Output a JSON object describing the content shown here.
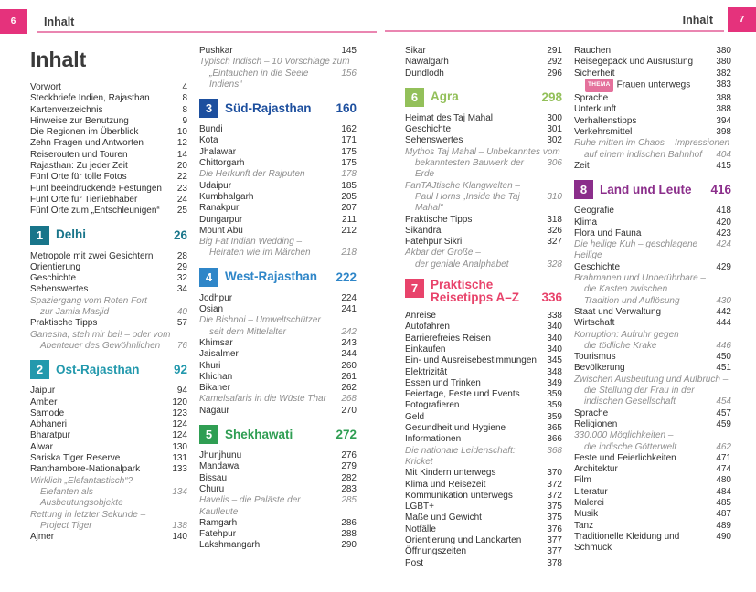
{
  "header": {
    "left": {
      "page_number": "6",
      "title": "Inhalt"
    },
    "right": {
      "page_number": "7",
      "title": "Inhalt"
    },
    "accent_color": "#e5327c",
    "rule_color": "#ea86b1"
  },
  "columns": [
    {
      "id": "page6-column1",
      "items": [
        {
          "t": "title",
          "text": "Inhalt"
        },
        {
          "t": "e",
          "label": "Vorwort",
          "page": "4"
        },
        {
          "t": "e",
          "label": "Steckbriefe Indien, Rajasthan",
          "page": "8"
        },
        {
          "t": "e",
          "label": "Kartenverzeichnis",
          "page": "8"
        },
        {
          "t": "e",
          "label": "Hinweise zur Benutzung",
          "page": "9"
        },
        {
          "t": "e",
          "label": "Die Regionen im Überblick",
          "page": "10"
        },
        {
          "t": "e",
          "label": "Zehn Fragen und Antworten",
          "page": "12"
        },
        {
          "t": "e",
          "label": "Reiserouten und Touren",
          "page": "14"
        },
        {
          "t": "e",
          "label": "Rajasthan: Zu jeder Zeit",
          "page": "20"
        },
        {
          "t": "e",
          "label": "Fünf Orte für tolle Fotos",
          "page": "22"
        },
        {
          "t": "e",
          "label": "Fünf beeindruckende Festungen",
          "page": "23"
        },
        {
          "t": "e",
          "label": "Fünf Orte für Tierliebhaber",
          "page": "24"
        },
        {
          "t": "e",
          "label": "Fünf Orte zum „Entschleunigen“",
          "page": "25"
        },
        {
          "t": "s",
          "num": "1",
          "label": "Delhi",
          "page": "26",
          "color": "#19758a"
        },
        {
          "t": "e",
          "label": "Metropole mit zwei Gesichtern",
          "page": "28"
        },
        {
          "t": "e",
          "label": "Orientierung",
          "page": "29"
        },
        {
          "t": "e",
          "label": "Geschichte",
          "page": "32"
        },
        {
          "t": "e",
          "label": "Sehenswertes",
          "page": "34"
        },
        {
          "t": "f",
          "lines": [
            "Spaziergang vom Roten Fort",
            "zur Jamia Masjid"
          ],
          "page": "40"
        },
        {
          "t": "e",
          "label": "Praktische Tipps",
          "page": "57"
        },
        {
          "t": "f",
          "lines": [
            "Ganesha, steh mir bei! – oder vom",
            "Abenteuer des Gewöhnlichen"
          ],
          "page": "76"
        },
        {
          "t": "s",
          "num": "2",
          "label": "Ost-Rajasthan",
          "page": "92",
          "color": "#2399ad"
        },
        {
          "t": "e",
          "label": "Jaipur",
          "page": "94"
        },
        {
          "t": "e",
          "label": "Amber",
          "page": "120"
        },
        {
          "t": "e",
          "label": "Samode",
          "page": "123"
        },
        {
          "t": "e",
          "label": "Abhaneri",
          "page": "124"
        },
        {
          "t": "e",
          "label": "Bharatpur",
          "page": "124"
        },
        {
          "t": "e",
          "label": "Alwar",
          "page": "130"
        },
        {
          "t": "e",
          "label": "Sariska Tiger Reserve",
          "page": "131"
        },
        {
          "t": "e",
          "label": "Ranthambore-Nationalpark",
          "page": "133"
        },
        {
          "t": "f",
          "lines": [
            "Wirklich „Elefantastisch“? –",
            "Elefanten als Ausbeutungsobjekte"
          ],
          "page": "134"
        },
        {
          "t": "f",
          "lines": [
            "Rettung in letzter Sekunde –",
            "Project Tiger"
          ],
          "page": "138"
        },
        {
          "t": "e",
          "label": "Ajmer",
          "page": "140"
        }
      ]
    },
    {
      "id": "page6-column2",
      "items": [
        {
          "t": "e",
          "label": "Pushkar",
          "page": "145"
        },
        {
          "t": "f",
          "lines": [
            "Typisch Indisch – 10 Vorschläge zum",
            "„Eintauchen in die Seele Indiens“"
          ],
          "page": "156"
        },
        {
          "t": "s",
          "num": "3",
          "label": "Süd-Rajasthan",
          "page": "160",
          "color": "#1d4f9e"
        },
        {
          "t": "e",
          "label": "Bundi",
          "page": "162"
        },
        {
          "t": "e",
          "label": "Kota",
          "page": "171"
        },
        {
          "t": "e",
          "label": "Jhalawar",
          "page": "175"
        },
        {
          "t": "e",
          "label": "Chittorgarh",
          "page": "175"
        },
        {
          "t": "f",
          "lines": [
            "Die Herkunft der Rajputen"
          ],
          "page": "178"
        },
        {
          "t": "e",
          "label": "Udaipur",
          "page": "185"
        },
        {
          "t": "e",
          "label": "Kumbhalgarh",
          "page": "205"
        },
        {
          "t": "e",
          "label": "Ranakpur",
          "page": "207"
        },
        {
          "t": "e",
          "label": "Dungarpur",
          "page": "211"
        },
        {
          "t": "e",
          "label": "Mount Abu",
          "page": "212"
        },
        {
          "t": "f",
          "lines": [
            "Big Fat Indian Wedding –",
            "Heiraten wie im Märchen"
          ],
          "page": "218"
        },
        {
          "t": "s",
          "num": "4",
          "label": "West-Rajasthan",
          "page": "222",
          "color": "#2f86c8"
        },
        {
          "t": "e",
          "label": "Jodhpur",
          "page": "224"
        },
        {
          "t": "e",
          "label": "Osian",
          "page": "241"
        },
        {
          "t": "f",
          "lines": [
            "Die Bishnoi – Umweltschützer",
            "seit dem Mittelalter"
          ],
          "page": "242"
        },
        {
          "t": "e",
          "label": "Khimsar",
          "page": "243"
        },
        {
          "t": "e",
          "label": "Jaisalmer",
          "page": "244"
        },
        {
          "t": "e",
          "label": "Khuri",
          "page": "260"
        },
        {
          "t": "e",
          "label": "Khichan",
          "page": "261"
        },
        {
          "t": "e",
          "label": "Bikaner",
          "page": "262"
        },
        {
          "t": "f",
          "lines": [
            "Kamelsafaris in die Wüste Thar"
          ],
          "page": "268"
        },
        {
          "t": "e",
          "label": "Nagaur",
          "page": "270"
        },
        {
          "t": "s",
          "num": "5",
          "label": "Shekhawati",
          "page": "272",
          "color": "#2f9e53"
        },
        {
          "t": "e",
          "label": "Jhunjhunu",
          "page": "276"
        },
        {
          "t": "e",
          "label": "Mandawa",
          "page": "279"
        },
        {
          "t": "e",
          "label": "Bissau",
          "page": "282"
        },
        {
          "t": "e",
          "label": "Churu",
          "page": "283"
        },
        {
          "t": "f",
          "lines": [
            "Havelis – die Paläste der Kaufleute"
          ],
          "page": "285"
        },
        {
          "t": "e",
          "label": "Ramgarh",
          "page": "286"
        },
        {
          "t": "e",
          "label": "Fatehpur",
          "page": "288"
        },
        {
          "t": "e",
          "label": "Lakshmangarh",
          "page": "290"
        }
      ]
    },
    {
      "id": "page7-column1",
      "items": [
        {
          "t": "e",
          "label": "Sikar",
          "page": "291"
        },
        {
          "t": "e",
          "label": "Nawalgarh",
          "page": "292"
        },
        {
          "t": "e",
          "label": "Dundlodh",
          "page": "296"
        },
        {
          "t": "s",
          "num": "6",
          "label": "Agra",
          "page": "298",
          "color": "#93c05a"
        },
        {
          "t": "e",
          "label": "Heimat des Taj Mahal",
          "page": "300"
        },
        {
          "t": "e",
          "label": "Geschichte",
          "page": "301"
        },
        {
          "t": "e",
          "label": "Sehenswertes",
          "page": "302"
        },
        {
          "t": "f",
          "lines": [
            "Mythos Taj Mahal – Unbekanntes vom",
            "bekanntesten Bauwerk der Erde"
          ],
          "page": "306"
        },
        {
          "t": "f",
          "lines": [
            "FanTAJtische Klangwelten –",
            "Paul Horns „Inside the Taj Mahal“"
          ],
          "page": "310"
        },
        {
          "t": "e",
          "label": "Praktische Tipps",
          "page": "318"
        },
        {
          "t": "e",
          "label": "Sikandra",
          "page": "326"
        },
        {
          "t": "e",
          "label": "Fatehpur Sikri",
          "page": "327"
        },
        {
          "t": "f",
          "lines": [
            "Akbar der Große –",
            "der geniale Analphabet"
          ],
          "page": "328"
        },
        {
          "t": "s",
          "num": "7",
          "label_lines": [
            "Praktische",
            "Reisetipps A–Z"
          ],
          "page": "336",
          "color": "#e8436b"
        },
        {
          "t": "e",
          "label": "Anreise",
          "page": "338"
        },
        {
          "t": "e",
          "label": "Autofahren",
          "page": "340"
        },
        {
          "t": "e",
          "label": "Barrierefreies Reisen",
          "page": "340"
        },
        {
          "t": "e",
          "label": "Einkaufen",
          "page": "340"
        },
        {
          "t": "e",
          "label": "Ein- und Ausreisebestimmungen",
          "page": "345"
        },
        {
          "t": "e",
          "label": "Elektrizität",
          "page": "348"
        },
        {
          "t": "e",
          "label": "Essen und Trinken",
          "page": "349"
        },
        {
          "t": "e",
          "label": "Feiertage, Feste und Events",
          "page": "359"
        },
        {
          "t": "e",
          "label": "Fotografieren",
          "page": "359"
        },
        {
          "t": "e",
          "label": "Geld",
          "page": "359"
        },
        {
          "t": "e",
          "label": "Gesundheit und Hygiene",
          "page": "365"
        },
        {
          "t": "e",
          "label": "Informationen",
          "page": "366"
        },
        {
          "t": "f",
          "lines": [
            "Die nationale Leidenschaft: Kricket"
          ],
          "page": "368"
        },
        {
          "t": "e",
          "label": "Mit Kindern unterwegs",
          "page": "370"
        },
        {
          "t": "e",
          "label": "Klima und Reisezeit",
          "page": "372"
        },
        {
          "t": "e",
          "label": "Kommunikation unterwegs",
          "page": "372"
        },
        {
          "t": "e",
          "label": "LGBT+",
          "page": "375"
        },
        {
          "t": "e",
          "label": "Maße und Gewicht",
          "page": "375"
        },
        {
          "t": "e",
          "label": "Notfälle",
          "page": "376"
        },
        {
          "t": "e",
          "label": "Orientierung und Landkarten",
          "page": "377"
        },
        {
          "t": "e",
          "label": "Öffnungszeiten",
          "page": "377"
        },
        {
          "t": "e",
          "label": "Post",
          "page": "378"
        }
      ]
    },
    {
      "id": "page7-column2",
      "items": [
        {
          "t": "e",
          "label": "Rauchen",
          "page": "380"
        },
        {
          "t": "e",
          "label": "Reisegepäck und Ausrüstung",
          "page": "380"
        },
        {
          "t": "e",
          "label": "Sicherheit",
          "page": "382"
        },
        {
          "t": "thema",
          "badge": "THEMA",
          "label": "Frauen unterwegs",
          "page": "383"
        },
        {
          "t": "e",
          "label": "Sprache",
          "page": "388"
        },
        {
          "t": "e",
          "label": "Unterkunft",
          "page": "388"
        },
        {
          "t": "e",
          "label": "Verhaltenstipps",
          "page": "394"
        },
        {
          "t": "e",
          "label": "Verkehrsmittel",
          "page": "398"
        },
        {
          "t": "f",
          "lines": [
            "Ruhe mitten im Chaos – Impressionen",
            "auf einem indischen Bahnhof"
          ],
          "page": "404"
        },
        {
          "t": "e",
          "label": "Zeit",
          "page": "415"
        },
        {
          "t": "s",
          "num": "8",
          "label": "Land und Leute",
          "page": "416",
          "color": "#8b2e8b"
        },
        {
          "t": "e",
          "label": "Geografie",
          "page": "418"
        },
        {
          "t": "e",
          "label": "Klima",
          "page": "420"
        },
        {
          "t": "e",
          "label": "Flora und Fauna",
          "page": "423"
        },
        {
          "t": "f",
          "lines": [
            "Die heilige Kuh – geschlagene Heilige"
          ],
          "page": "424"
        },
        {
          "t": "e",
          "label": "Geschichte",
          "page": "429"
        },
        {
          "t": "f",
          "lines": [
            "Brahmanen und Unberührbare –",
            "die Kasten zwischen",
            "Tradition und Auflösung"
          ],
          "page": "430"
        },
        {
          "t": "e",
          "label": "Staat und Verwaltung",
          "page": "442"
        },
        {
          "t": "e",
          "label": "Wirtschaft",
          "page": "444"
        },
        {
          "t": "f",
          "lines": [
            "Korruption: Aufruhr gegen",
            "die tödliche Krake"
          ],
          "page": "446"
        },
        {
          "t": "e",
          "label": "Tourismus",
          "page": "450"
        },
        {
          "t": "e",
          "label": "Bevölkerung",
          "page": "451"
        },
        {
          "t": "f",
          "lines": [
            "Zwischen Ausbeutung und Aufbruch –",
            "die Stellung der Frau in der",
            "indischen Gesellschaft"
          ],
          "page": "454"
        },
        {
          "t": "e",
          "label": "Sprache",
          "page": "457"
        },
        {
          "t": "e",
          "label": "Religionen",
          "page": "459"
        },
        {
          "t": "f",
          "lines": [
            "330.000 Möglichkeiten –",
            "die indische Götterwelt"
          ],
          "page": "462"
        },
        {
          "t": "e",
          "label": "Feste und Feierlichkeiten",
          "page": "471"
        },
        {
          "t": "e",
          "label": "Architektur",
          "page": "474"
        },
        {
          "t": "e",
          "label": "Film",
          "page": "480"
        },
        {
          "t": "e",
          "label": "Literatur",
          "page": "484"
        },
        {
          "t": "e",
          "label": "Malerei",
          "page": "485"
        },
        {
          "t": "e",
          "label": "Musik",
          "page": "487"
        },
        {
          "t": "e",
          "label": "Tanz",
          "page": "489"
        },
        {
          "t": "e",
          "label": "Traditionelle Kleidung und Schmuck",
          "page": "490"
        }
      ]
    }
  ]
}
